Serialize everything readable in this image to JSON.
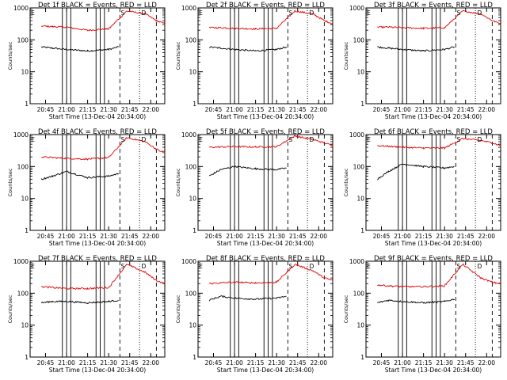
{
  "figure": {
    "colors": {
      "events": "#000000",
      "lld": "#e00000",
      "axes": "#000000"
    },
    "y_tick_labels": [
      "1",
      "10",
      "100",
      "1000"
    ],
    "x_tick_labels": [
      "20:45",
      "21:00",
      "21:15",
      "21:30",
      "21:45",
      "22:00"
    ]
  },
  "chart_data": [
    {
      "type": "line",
      "title": "Det 1f BLACK = Events, RED = LLD",
      "xlabel": "Start Time (13-Dec-04 20:34:00)",
      "ylabel": "Counts/sec",
      "y_scale": "log",
      "ylim": [
        1,
        1000
      ],
      "x_range": [
        "20:34",
        "22:10"
      ],
      "grid": false,
      "legend": "title",
      "series": [
        {
          "name": "Events",
          "x": [
            "20:42",
            "20:50",
            "21:00",
            "21:15",
            "21:30",
            "21:37"
          ],
          "values": [
            60,
            55,
            50,
            45,
            50,
            60
          ]
        },
        {
          "name": "LLD",
          "x": [
            "20:42",
            "20:50",
            "21:00",
            "21:15",
            "21:30",
            "21:43",
            "21:56",
            "22:04",
            "22:10"
          ],
          "values": [
            270,
            260,
            250,
            200,
            220,
            800,
            650,
            400,
            320
          ]
        }
      ],
      "annotations": [
        "E",
        "S",
        "D"
      ]
    },
    {
      "type": "line",
      "title": "Det 2f BLACK = Events, RED = LLD",
      "xlabel": "Start Time (13-Dec-04 20:34:00)",
      "ylabel": "Counts/sec",
      "y_scale": "log",
      "ylim": [
        1,
        1000
      ],
      "x_range": [
        "20:34",
        "22:10"
      ],
      "grid": false,
      "legend": "title",
      "series": [
        {
          "name": "Events",
          "x": [
            "20:42",
            "20:50",
            "21:00",
            "21:15",
            "21:30",
            "21:37"
          ],
          "values": [
            60,
            55,
            50,
            45,
            50,
            60
          ]
        },
        {
          "name": "LLD",
          "x": [
            "20:42",
            "20:50",
            "21:00",
            "21:15",
            "21:30",
            "21:43",
            "21:56",
            "22:04",
            "22:10"
          ],
          "values": [
            240,
            240,
            230,
            220,
            230,
            800,
            650,
            400,
            320
          ]
        }
      ],
      "annotations": [
        "E",
        "S",
        "D"
      ]
    },
    {
      "type": "line",
      "title": "Det 3f BLACK = Events, RED = LLD",
      "xlabel": "Start Time (13-Dec-04 20:34:00)",
      "ylabel": "Counts/sec",
      "y_scale": "log",
      "ylim": [
        1,
        1000
      ],
      "x_range": [
        "20:34",
        "22:10"
      ],
      "grid": false,
      "legend": "title",
      "series": [
        {
          "name": "Events",
          "x": [
            "20:42",
            "20:50",
            "21:00",
            "21:15",
            "21:30",
            "21:37"
          ],
          "values": [
            60,
            55,
            50,
            45,
            50,
            60
          ]
        },
        {
          "name": "LLD",
          "x": [
            "20:42",
            "20:50",
            "21:00",
            "21:15",
            "21:30",
            "21:43",
            "21:56",
            "22:04",
            "22:10"
          ],
          "values": [
            250,
            250,
            240,
            230,
            240,
            800,
            650,
            400,
            320
          ]
        }
      ],
      "annotations": [
        "E",
        "S",
        "D"
      ]
    },
    {
      "type": "line",
      "title": "Det 4f BLACK = Events, RED = LLD",
      "xlabel": "Start Time (13-Dec-04 20:34:00)",
      "ylabel": "Counts/sec",
      "y_scale": "log",
      "ylim": [
        1,
        1000
      ],
      "x_range": [
        "20:34",
        "22:10"
      ],
      "grid": false,
      "legend": "title",
      "series": [
        {
          "name": "Events",
          "x": [
            "20:42",
            "20:50",
            "21:00",
            "21:15",
            "21:30",
            "21:37"
          ],
          "values": [
            40,
            50,
            70,
            45,
            50,
            60
          ]
        },
        {
          "name": "LLD",
          "x": [
            "20:42",
            "20:50",
            "21:00",
            "21:15",
            "21:30",
            "21:43",
            "21:56",
            "22:04",
            "22:10"
          ],
          "values": [
            200,
            190,
            180,
            170,
            190,
            800,
            600,
            350,
            260
          ]
        }
      ],
      "annotations": [
        "E",
        "S",
        "D"
      ]
    },
    {
      "type": "line",
      "title": "Det 5f BLACK = Events, RED = LLD",
      "xlabel": "Start Time (13-Dec-04 20:34:00)",
      "ylabel": "Counts/sec",
      "y_scale": "log",
      "ylim": [
        1,
        1000
      ],
      "x_range": [
        "20:34",
        "22:10"
      ],
      "grid": false,
      "legend": "title",
      "series": [
        {
          "name": "Events",
          "x": [
            "20:42",
            "20:50",
            "21:00",
            "21:15",
            "21:30",
            "21:37"
          ],
          "values": [
            50,
            80,
            100,
            85,
            80,
            90
          ]
        },
        {
          "name": "LLD",
          "x": [
            "20:42",
            "20:50",
            "21:00",
            "21:15",
            "21:30",
            "21:43",
            "21:56",
            "22:04",
            "22:10"
          ],
          "values": [
            400,
            410,
            420,
            410,
            420,
            900,
            700,
            550,
            450
          ]
        }
      ],
      "annotations": [
        "E",
        "S",
        "D"
      ]
    },
    {
      "type": "line",
      "title": "Det 6f BLACK = Events, RED = LLD",
      "xlabel": "Start Time (13-Dec-04 20:34:00)",
      "ylabel": "Counts/sec",
      "y_scale": "log",
      "ylim": [
        1,
        1000
      ],
      "x_range": [
        "20:34",
        "22:10"
      ],
      "grid": false,
      "legend": "title",
      "series": [
        {
          "name": "Events",
          "x": [
            "20:42",
            "20:50",
            "21:00",
            "21:15",
            "21:30",
            "21:37"
          ],
          "values": [
            40,
            70,
            120,
            100,
            90,
            100
          ]
        },
        {
          "name": "LLD",
          "x": [
            "20:42",
            "20:50",
            "21:00",
            "21:15",
            "21:30",
            "21:43",
            "21:56",
            "22:04",
            "22:10"
          ],
          "values": [
            450,
            430,
            400,
            380,
            380,
            750,
            650,
            550,
            450
          ]
        }
      ],
      "annotations": [
        "E",
        "S",
        "D"
      ]
    },
    {
      "type": "line",
      "title": "Det 7f BLACK = Events, RED = LLD",
      "xlabel": "Start Time (13-Dec-04 20:34:00)",
      "ylabel": "Counts/sec",
      "y_scale": "log",
      "ylim": [
        1,
        1000
      ],
      "x_range": [
        "20:34",
        "22:10"
      ],
      "grid": false,
      "legend": "title",
      "series": [
        {
          "name": "Events",
          "x": [
            "20:42",
            "20:50",
            "21:00",
            "21:15",
            "21:30",
            "21:37"
          ],
          "values": [
            50,
            55,
            55,
            50,
            55,
            60
          ]
        },
        {
          "name": "LLD",
          "x": [
            "20:42",
            "20:50",
            "21:00",
            "21:15",
            "21:30",
            "21:43",
            "21:56",
            "22:04",
            "22:10"
          ],
          "values": [
            160,
            150,
            140,
            140,
            150,
            800,
            450,
            250,
            200
          ]
        }
      ],
      "annotations": [
        "E",
        "S",
        "D"
      ]
    },
    {
      "type": "line",
      "title": "Det 8f BLACK = Events, RED = LLD",
      "xlabel": "Start Time (13-Dec-04 20:34:00)",
      "ylabel": "Counts/sec",
      "y_scale": "log",
      "ylim": [
        1,
        1000
      ],
      "x_range": [
        "20:34",
        "22:10"
      ],
      "grid": false,
      "legend": "title",
      "series": [
        {
          "name": "Events",
          "x": [
            "20:42",
            "20:50",
            "21:00",
            "21:15",
            "21:30",
            "21:37"
          ],
          "values": [
            60,
            80,
            70,
            65,
            70,
            80
          ]
        },
        {
          "name": "LLD",
          "x": [
            "20:42",
            "20:50",
            "21:00",
            "21:15",
            "21:30",
            "21:43",
            "21:56",
            "22:04",
            "22:10"
          ],
          "values": [
            200,
            210,
            220,
            210,
            220,
            800,
            500,
            300,
            250
          ]
        }
      ],
      "annotations": [
        "E",
        "S",
        "D"
      ]
    },
    {
      "type": "line",
      "title": "Det 9f BLACK = Events, RED = LLD",
      "xlabel": "Start Time (13-Dec-04 20:34:00)",
      "ylabel": "Counts/sec",
      "y_scale": "log",
      "ylim": [
        1,
        1000
      ],
      "x_range": [
        "20:34",
        "22:10"
      ],
      "grid": false,
      "legend": "title",
      "series": [
        {
          "name": "Events",
          "x": [
            "20:42",
            "20:50",
            "21:00",
            "21:15",
            "21:30",
            "21:37"
          ],
          "values": [
            50,
            60,
            55,
            50,
            55,
            65
          ]
        },
        {
          "name": "LLD",
          "x": [
            "20:42",
            "20:50",
            "21:00",
            "21:15",
            "21:30",
            "21:43",
            "21:56",
            "22:04",
            "22:10"
          ],
          "values": [
            180,
            170,
            160,
            160,
            170,
            800,
            300,
            220,
            200
          ]
        }
      ],
      "annotations": [
        "E",
        "S",
        "D"
      ]
    }
  ]
}
